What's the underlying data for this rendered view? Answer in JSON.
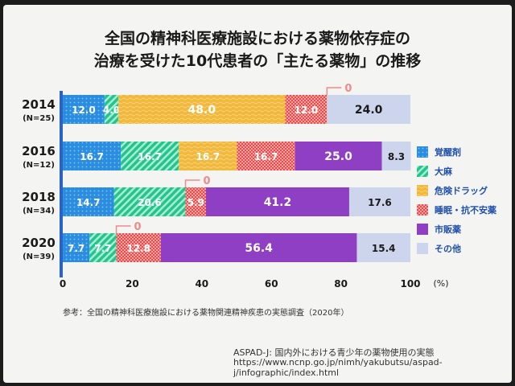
{
  "title": {
    "line1": "全国の精神科医療施設における薬物依存症の",
    "line2": "治療を受けた10代患者の「主たる薬物」の推移"
  },
  "chart_data": {
    "type": "bar",
    "orientation": "horizontal",
    "stacked": true,
    "categories": [
      {
        "year": "2014",
        "n": "(N=25)"
      },
      {
        "year": "2016",
        "n": "(N=12)"
      },
      {
        "year": "2018",
        "n": "(N=34)"
      },
      {
        "year": "2020",
        "n": "(N=39)"
      }
    ],
    "series": [
      {
        "name": "覚醒剤",
        "color": "#2a8de0",
        "pattern": "dots",
        "values": [
          12.0,
          16.7,
          14.7,
          7.7
        ],
        "labels": [
          "12.0",
          "16.7",
          "14.7",
          "7.7"
        ]
      },
      {
        "name": "大麻",
        "color": "#23c48e",
        "pattern": "stripes",
        "values": [
          4.0,
          16.7,
          20.6,
          7.7
        ],
        "labels": [
          "4.0",
          "16.7",
          "20.6",
          "7.7"
        ]
      },
      {
        "name": "危険ドラッグ",
        "color": "#f2b83c",
        "pattern": "waves",
        "values": [
          48.0,
          16.7,
          0,
          0
        ],
        "labels": [
          "48.0",
          "16.7",
          "",
          ""
        ]
      },
      {
        "name": "睡眠・抗不安薬",
        "color": "#e94b4b",
        "pattern": "checks",
        "values": [
          12.0,
          16.7,
          5.9,
          12.8
        ],
        "labels": [
          "12.0",
          "16.7",
          "5.9",
          "12.8"
        ]
      },
      {
        "name": "市販薬",
        "color": "#8e3fc4",
        "pattern": "solid",
        "values": [
          0,
          25.0,
          41.2,
          56.4
        ],
        "labels": [
          "0",
          "25.0",
          "41.2",
          "56.4"
        ]
      },
      {
        "name": "その他",
        "color": "#cdd5ec",
        "pattern": "solid",
        "values": [
          24.0,
          8.3,
          17.6,
          15.4
        ],
        "labels": [
          "24.0",
          "8.3",
          "17.6",
          "15.4"
        ]
      }
    ],
    "zero_callouts": [
      {
        "category": 0,
        "label": "0"
      },
      {
        "category": 2,
        "label": "0"
      },
      {
        "category": 3,
        "label": "0"
      }
    ],
    "xlim": [
      0,
      100
    ],
    "xticks": [
      "0",
      "20",
      "40",
      "60",
      "80",
      "100"
    ],
    "xunit": "(%)",
    "legend_position": "right",
    "accent": "#2a63c8"
  },
  "footer": {
    "reference": "参考：全国の精神科医療施設における薬物関連精神疾患の実態調査（2020年）",
    "source_title": "ASPAD-J: 国内外における青少年の薬物使用の実態",
    "source_url": "https://www.ncnp.go.jp/nimh/yakubutsu/aspad-j/infographic/index.html"
  }
}
